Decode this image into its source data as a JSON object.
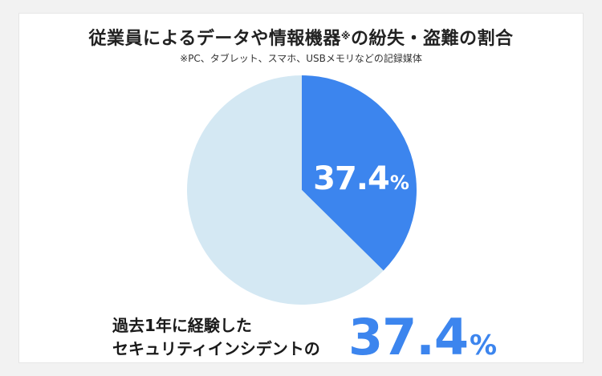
{
  "title": {
    "main": "従業員によるデータや情報機器",
    "mark": "※",
    "rest": "の紛失・盗難の割合"
  },
  "subtitle": "※PC、タブレット、スマホ、USBメモリなどの記録媒体",
  "chart_data": {
    "type": "pie",
    "slices": [
      {
        "value": 37.4,
        "color": "#3c85ee",
        "label": "37.4",
        "unit": "%"
      },
      {
        "value": 62.6,
        "color": "#d4e8f3"
      }
    ],
    "start_angle_deg": 0,
    "direction": "clockwise"
  },
  "caption": {
    "line1": "過去1年に経験した",
    "line2": "セキュリティインシデントの"
  },
  "highlight": {
    "value": "37.4",
    "unit": "%",
    "color": "#3c85ee"
  }
}
